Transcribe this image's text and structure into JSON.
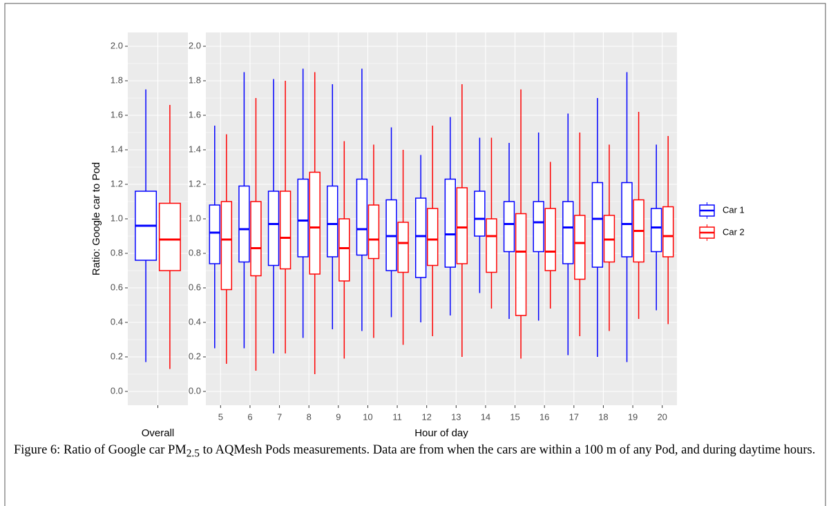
{
  "chart_data": [
    {
      "type": "box",
      "xlabel": "Overall",
      "ylabel": "Ratio: Google car to Pod",
      "categories": [
        null
      ],
      "series": [
        {
          "color": "#0000ff",
          "values": [
            [
              0.17,
              0.76,
              0.96,
              1.16,
              1.75
            ]
          ]
        },
        {
          "color": "#ff0000",
          "values": [
            [
              0.13,
              0.7,
              0.88,
              1.09,
              1.66
            ]
          ]
        }
      ],
      "ylim": [
        -0.08,
        2.08
      ],
      "yticks": [
        {
          "value": 0,
          "label": "0.0"
        },
        0.2,
        0.4,
        0.6,
        0.8,
        {
          "value": 1,
          "label": "1.0"
        },
        1.2,
        1.4,
        1.6,
        1.8,
        {
          "value": 2,
          "label": "2.0"
        }
      ],
      "grid": true
    },
    {
      "type": "box",
      "xlabel": "Hour of day",
      "categories": [
        "5",
        "6",
        "7",
        "8",
        "9",
        "10",
        "11",
        "12",
        "13",
        "14",
        "15",
        "16",
        "17",
        "18",
        "19",
        "20"
      ],
      "series": [
        {
          "name": "Car 1",
          "color": "#0000ff",
          "values": [
            [
              0.25,
              0.74,
              0.92,
              1.08,
              1.54
            ],
            [
              0.25,
              0.75,
              0.94,
              1.19,
              1.85
            ],
            [
              0.22,
              0.73,
              0.97,
              1.16,
              1.81
            ],
            [
              0.31,
              0.78,
              0.99,
              1.23,
              1.87
            ],
            [
              0.36,
              0.78,
              0.97,
              1.19,
              1.78
            ],
            [
              0.35,
              0.79,
              0.94,
              1.23,
              1.87
            ],
            [
              0.43,
              0.7,
              0.9,
              1.11,
              1.53
            ],
            [
              0.4,
              0.66,
              0.9,
              1.12,
              1.37
            ],
            [
              0.44,
              0.72,
              0.91,
              1.23,
              1.59
            ],
            [
              0.57,
              0.9,
              1.0,
              1.16,
              1.47
            ],
            [
              0.42,
              0.81,
              0.97,
              1.1,
              1.44
            ],
            [
              0.41,
              0.81,
              0.98,
              1.1,
              1.5
            ],
            [
              0.21,
              0.74,
              0.95,
              1.1,
              1.61
            ],
            [
              0.2,
              0.72,
              1.0,
              1.21,
              1.7
            ],
            [
              0.17,
              0.78,
              0.97,
              1.21,
              1.85
            ],
            [
              0.47,
              0.81,
              0.95,
              1.06,
              1.43
            ]
          ]
        },
        {
          "name": "Car 2",
          "color": "#ff0000",
          "values": [
            [
              0.16,
              0.59,
              0.88,
              1.1,
              1.49
            ],
            [
              0.12,
              0.67,
              0.83,
              1.1,
              1.7
            ],
            [
              0.22,
              0.71,
              0.89,
              1.16,
              1.8
            ],
            [
              0.1,
              0.68,
              0.95,
              1.27,
              1.85
            ],
            [
              0.19,
              0.64,
              0.83,
              1.0,
              1.45
            ],
            [
              0.31,
              0.77,
              0.88,
              1.08,
              1.43
            ],
            [
              0.27,
              0.69,
              0.86,
              0.98,
              1.4
            ],
            [
              0.32,
              0.73,
              0.88,
              1.06,
              1.54
            ],
            [
              0.2,
              0.74,
              0.95,
              1.18,
              1.78
            ],
            [
              0.48,
              0.69,
              0.9,
              1.0,
              1.47
            ],
            [
              0.19,
              0.44,
              0.81,
              1.03,
              1.75
            ],
            [
              0.48,
              0.7,
              0.81,
              1.06,
              1.33
            ],
            [
              0.32,
              0.65,
              0.86,
              1.02,
              1.5
            ],
            [
              0.35,
              0.75,
              0.88,
              1.02,
              1.43
            ],
            [
              0.42,
              0.75,
              0.93,
              1.11,
              1.62
            ],
            [
              0.39,
              0.78,
              0.9,
              1.07,
              1.48
            ]
          ]
        }
      ],
      "ylim": [
        -0.08,
        2.08
      ],
      "yticks": [
        {
          "value": 0,
          "label": "0.0"
        },
        0.2,
        0.4,
        0.6,
        0.8,
        {
          "value": 1,
          "label": "1.0"
        },
        1.2,
        1.4,
        1.6,
        1.8,
        {
          "value": 2,
          "label": "2.0"
        }
      ],
      "grid": true,
      "legend": "right"
    }
  ],
  "caption": {
    "before": "Figure 6: Ratio of Google car PM",
    "sub": "2.5",
    "after": " to AQMesh Pods measurements. Data are from when the cars are within a 100 m of any Pod, and during daytime hours."
  }
}
